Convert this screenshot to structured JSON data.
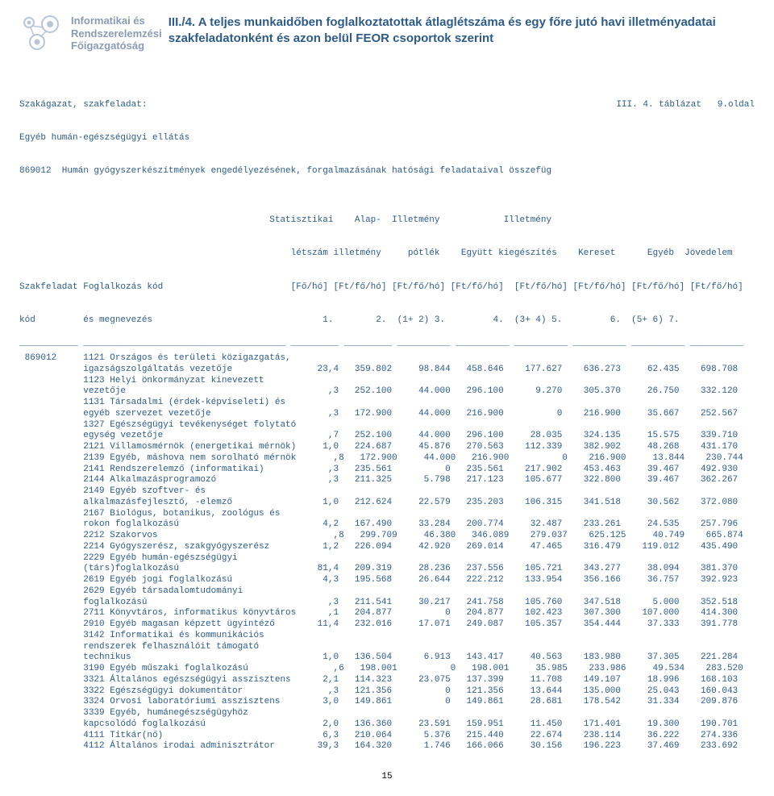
{
  "brand": {
    "line1": "Informatikai és",
    "line2": "Rendszerelemzési",
    "line3": "Főigazgatóság"
  },
  "title": "III./4. A teljes munkaidőben foglalkoztatottak átlaglétszáma és egy főre jutó havi illetményadatai szakfeladatonként és azon belül FEOR csoportok szerint",
  "page_right": "III. 4. táblázat   9.oldal",
  "sector_line1": "Szakágazat, szakfeladat:",
  "sector_line2": "Egyéb humán-egészségügyi ellátás",
  "sector_line3": "869012  Humán gyógyszerkészítmények engedélyezésének, forgalmazásának hatósági feladataival összefüg",
  "columns_l1": "                                               Statisztikai    Alap-  Illetmény            Illetmény",
  "columns_l2": "                                                   létszám illetmény     pótlék    Együtt kiegészítés    Kereset      Egyéb  Jövedelem",
  "columns_l3": "Szakfeladat Foglalkozás kód                        [Fő/hó] [Ft/fő/hó] [Ft/fő/hó] [Ft/fő/hó]  [Ft/fő/hó] [Ft/fő/hó] [Ft/fő/hó] [Ft/fő/hó]",
  "columns_l4": "kód         és megnevezés                                1.        2.  (1+ 2) 3.         4.  (3+ 4) 5.         6.  (5+ 6) 7.",
  "rule": "___________ ______________________________________ _________ _________ __________ __________ __________ __________ __________ __________",
  "rows": [
    " 869012     1121 Országos és területi közigazgatás,",
    "            igazságszolgáltatás vezetője                23,4   359.802     98.844   458.646    177.627    636.273     62.435    698.708",
    "            1123 Helyi önkormányzat kinevezett",
    "            vezetője                                      ,3   252.100     44.000   296.100      9.270    305.370     26.750    332.120",
    "            1131 Társadalmi (érdek-képviseleti) és",
    "            egyéb szervezet vezetője                      ,3   172.900     44.000   216.900          0    216.900     35.667    252.567",
    "            1327 Egészségügyi tevékenységet folytató",
    "            egység vezetője                               ,7   252.100     44.000   296.100     28.035    324.135     15.575    339.710",
    "            2121 Villamosmérnök (energetikai mérnök)     1,0   224.687     45.876   270.563    112.339    382.902     48.268    431.170",
    "            2139 Egyéb, máshova nem sorolható mérnök       ,8   172.900     44.000   216.900          0    216.900     13.844    230.744",
    "            2141 Rendszerelemző (informatikai)            ,3   235.561          0   235.561    217.902    453.463     39.467    492.930",
    "            2144 Alkalmazásprogramozó                     ,3   211.325      5.798   217.123    105.677    322.800     39.467    362.267",
    "            2149 Egyéb szoftver- és",
    "            alkalmazásfejlesztő, -elemző                 1,0   212.624     22.579   235.203    106.315    341.518     30.562    372.080",
    "            2167 Biológus, botanikus, zoológus és",
    "            rokon foglalkozású                           4,2   167.490     33.284   200.774     32.487    233.261     24.535    257.796",
    "            2212 Szakorvos                                 ,8   299.709     46.380   346.089    279.037    625.125     40.749    665.874",
    "            2214 Gyógyszerész, szakgyógyszerész          1,2   226.094     42.920   269.014     47.465    316.479    119.012    435.490",
    "            2229 Egyéb humán-egészségügyi",
    "            (társ)foglalkozású                          81,4   209.319     28.236   237.556    105.721    343.277     38.094    381.370",
    "            2619 Egyéb jogi foglalkozású                 4,3   195.568     26.644   222.212    133.954    356.166     36.757    392.923",
    "            2629 Egyéb társadalomtudományi",
    "            foglalkozású                                  ,3   211.541     30.217   241.758    105.760    347.518      5.000    352.518",
    "            2711 Könyvtáros, informatikus könyvtáros      ,1   204.877          0   204.877    102.423    307.300    107.000    414.300",
    "            2910 Egyéb magasan képzett ügyintéző        11,4   232.016     17.071   249.087    105.357    354.444     37.333    391.778",
    "            3142 Informatikai és kommunikációs",
    "            rendszerek felhasználóit támogató",
    "            technikus                                    1,0   136.504      6.913   143.417     40.563    183.980     37.305    221.284",
    "            3190 Egyéb műszaki foglalkozású                ,6   198.001          0   198.001     35.985    233.986     49.534    283.520",
    "            3321 Általános egészségügyi asszisztens      2,1   114.323     23.075   137.399     11.708    149.107     18.996    168.103",
    "            3322 Egészségügyi dokumentátor                ,3   121.356          0   121.356     13.644    135.000     25.043    160.043",
    "            3324 Orvosi laboratóriumi asszisztens        3,0   149.861          0   149.861     28.681    178.542     31.334    209.876",
    "            3339 Egyéb, humánegészségügyhöz",
    "            kapcsolódó foglalkozású                      2,0   136.360     23.591   159.951     11.450    171.401     19.300    190.701",
    "            4111 Titkár(nő)                              6,3   210.064      5.376   215.440     22.674    238.114     36.222    274.336",
    "            4112 Általános irodai adminisztrátor        39,3   164.320      1.746   166.066     30.156    196.223     37.469    233.692"
  ],
  "pagenum": "15"
}
